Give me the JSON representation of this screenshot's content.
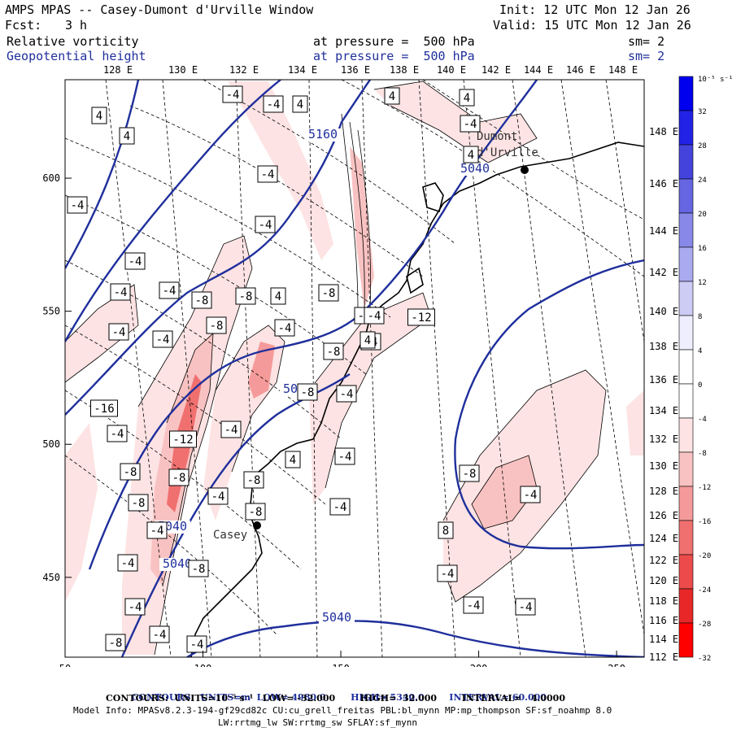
{
  "header": {
    "title": "AMPS MPAS -- Casey-Dumont d'Urville Window",
    "fcst_label": "Fcst:",
    "fcst_value": "3 h",
    "init": "Init: 12 UTC Mon 12 Jan 26",
    "valid": "Valid: 15 UTC Mon 12 Jan 26",
    "field1_name": "Relative vorticity",
    "field1_level": "at pressure =  500 hPa",
    "field1_sm": "sm= 2",
    "field2_name": "Geopotential height",
    "field2_level": "at pressure =  500 hPa",
    "field2_sm": "sm= 2"
  },
  "chart_data": {
    "type": "map-contour",
    "title": "AMPS MPAS -- Casey-Dumont d'Urville Window",
    "x_range": [
      50,
      260
    ],
    "y_range": [
      420,
      637
    ],
    "x_ticks": [
      "50",
      "100",
      "150",
      "200",
      "250"
    ],
    "y_ticks": [
      "600",
      "550",
      "500",
      "450"
    ],
    "top_lon_labels": [
      "128 E",
      "130 E",
      "132 E",
      "134 E",
      "136 E",
      "138 E",
      "140 E",
      "142 E",
      "144 E",
      "146 E",
      "148 E"
    ],
    "right_lon_labels": [
      "148 E",
      "146 E",
      "144 E",
      "142 E",
      "140 E",
      "138 E",
      "136 E",
      "134 E",
      "132 E",
      "130 E",
      "128 E",
      "126 E",
      "124 E",
      "122 E",
      "120 E",
      "118 E",
      "116 E",
      "114 E",
      "112 E"
    ],
    "colorbar": {
      "unit": "10⁻⁵ s⁻¹",
      "labels": [
        "32",
        "28",
        "24",
        "20",
        "16",
        "12",
        "8",
        "4",
        "0",
        "-4",
        "-8",
        "-12",
        "-16",
        "-20",
        "-24",
        "-28",
        "-32"
      ],
      "colors": [
        "#0000ee",
        "#2222e6",
        "#4444dd",
        "#6666e2",
        "#8888e8",
        "#aaaaf0",
        "#ccccf5",
        "#eeeeff",
        "#ffffff",
        "#ffffff",
        "#fde3e3",
        "#f9c2c2",
        "#f59a9a",
        "#f07070",
        "#ec4b4b",
        "#e82828",
        "#ff0000"
      ]
    },
    "height_contours": [
      {
        "label": "5160"
      },
      {
        "label": "5040"
      },
      {
        "label": "5040"
      },
      {
        "label": "5040"
      },
      {
        "label": "5040"
      },
      {
        "label": "5040"
      }
    ],
    "vorticity_labels": [
      "4",
      "4",
      "-4",
      "-4",
      "4",
      "-4",
      "-4",
      "4",
      "4",
      "-4",
      "4",
      "-4",
      "-4",
      "-4",
      "-4",
      "-8",
      "-8",
      "4",
      "-8",
      "-4",
      "-4",
      "-8",
      "-4",
      "-4",
      "-12",
      "-8",
      "-4",
      "-16",
      "-4",
      "-12",
      "-4",
      "-4",
      "-8",
      "-8",
      "-8",
      "-4",
      "-8",
      "-4",
      "-4",
      "-8",
      "-4",
      "-4",
      "-8",
      "-8",
      "-8",
      "4",
      "-4",
      "-4",
      "8",
      "-4",
      "-8",
      "-4",
      "-4",
      "-4",
      "-4",
      "-4",
      "4"
    ],
    "stations": [
      {
        "name": "Dumont d'Urville"
      },
      {
        "name": "Casey"
      }
    ]
  },
  "footer": {
    "line1_prefix": "CONTOURS:  UNITS=m  LOW=",
    "line1_low": "4980.0",
    "line1_high_label": "HIGH=",
    "line1_high": "5340.0",
    "line1_int_label": "INTERVAL=",
    "line1_int": "60.000",
    "line2": "CONTOURS:  UNITS=10⁻⁵ s⁻¹   LOW= -32.000        HIGH=  32.000        INTERVAL=   4.0000",
    "line3": "Model Info: MPASv8.2.3-194-gf29cd82c CU:cu_grell_freitas PBL:bl_mynn MP:mp_thompson SF:sf_noahmp 8.0",
    "line4": "LW:rrtmg_lw SW:rrtmg_sw SFLAY:sf_mynn"
  }
}
